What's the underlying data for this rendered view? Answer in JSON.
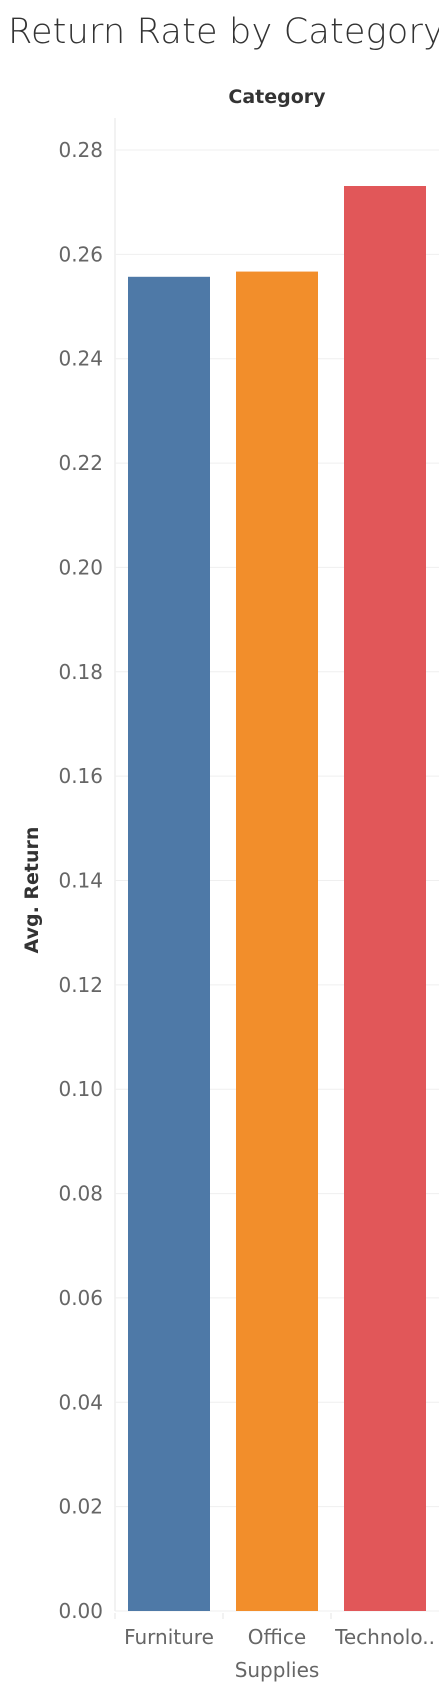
{
  "chart_data": {
    "type": "bar",
    "title": "Return Rate by Category",
    "column_header": "Category",
    "ylabel": "Avg. Return",
    "xlabel": "",
    "categories": [
      "Furniture",
      "Office Supplies",
      "Technology"
    ],
    "category_display": [
      [
        "Furniture"
      ],
      [
        "Office",
        "Supplies"
      ],
      [
        "Technolo.."
      ]
    ],
    "values": [
      0.2557,
      0.2567,
      0.2731
    ],
    "colors": [
      "#4e79a7",
      "#f28e2b",
      "#e15759"
    ],
    "ylim": [
      0,
      0.28
    ],
    "yticks": [
      "0.00",
      "0.02",
      "0.04",
      "0.06",
      "0.08",
      "0.10",
      "0.12",
      "0.14",
      "0.16",
      "0.18",
      "0.20",
      "0.22",
      "0.24",
      "0.26",
      "0.28"
    ],
    "grid": true
  }
}
